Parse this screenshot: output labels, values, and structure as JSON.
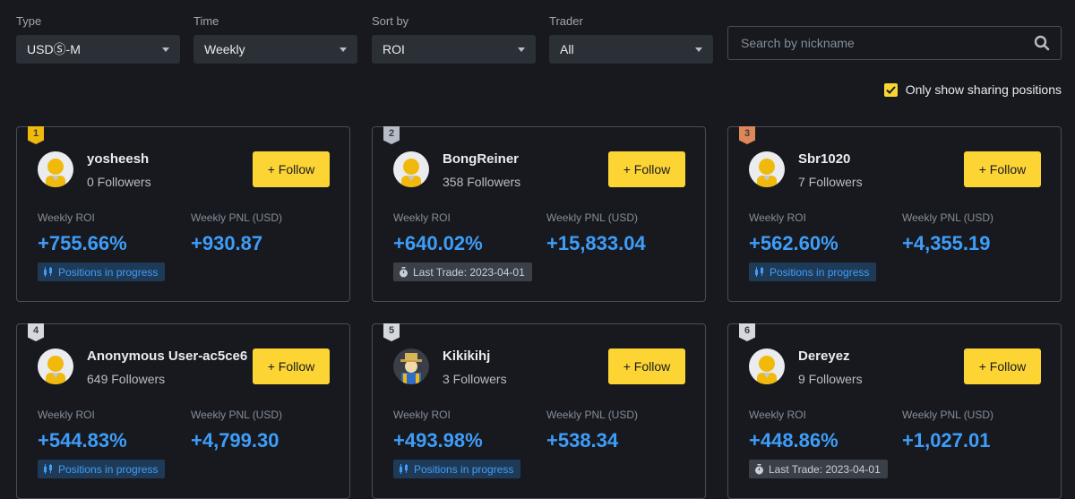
{
  "filters": {
    "type": {
      "label": "Type",
      "value": "USDⓈ-M"
    },
    "time": {
      "label": "Time",
      "value": "Weekly"
    },
    "sort": {
      "label": "Sort by",
      "value": "ROI"
    },
    "trader": {
      "label": "Trader",
      "value": "All"
    }
  },
  "search": {
    "placeholder": "Search by nickname"
  },
  "sharing_toggle": {
    "label": "Only show sharing positions",
    "checked": true
  },
  "accent_color": "#fcd535",
  "value_color": "#3e9df9",
  "traders": [
    {
      "rank": "1",
      "nickname": "yosheesh",
      "followers": "0 Followers",
      "follow_label": "+ Follow",
      "roi_label": "Weekly ROI",
      "pnl_label": "Weekly PNL (USD)",
      "roi": "+755.66%",
      "pnl": "+930.87",
      "badge": "Positions in progress",
      "badge_type": "positions",
      "avatar": "default-avatar"
    },
    {
      "rank": "2",
      "nickname": "BongReiner",
      "followers": "358 Followers",
      "follow_label": "+ Follow",
      "roi_label": "Weekly ROI",
      "pnl_label": "Weekly PNL (USD)",
      "roi": "+640.02%",
      "pnl": "+15,833.04",
      "badge": "Last Trade: 2023-04-01",
      "badge_type": "last-trade",
      "avatar": "default-avatar"
    },
    {
      "rank": "3",
      "nickname": "Sbr1020",
      "followers": "7 Followers",
      "follow_label": "+ Follow",
      "roi_label": "Weekly ROI",
      "pnl_label": "Weekly PNL (USD)",
      "roi": "+562.60%",
      "pnl": "+4,355.19",
      "badge": "Positions in progress",
      "badge_type": "positions",
      "avatar": "default-avatar"
    },
    {
      "rank": "4",
      "nickname": "Anonymous User-ac5ce6",
      "followers": "649 Followers",
      "follow_label": "+ Follow",
      "roi_label": "Weekly ROI",
      "pnl_label": "Weekly PNL (USD)",
      "roi": "+544.83%",
      "pnl": "+4,799.30",
      "badge": "Positions in progress",
      "badge_type": "positions",
      "avatar": "default-avatar"
    },
    {
      "rank": "5",
      "nickname": "Kikikihj",
      "followers": "3 Followers",
      "follow_label": "+ Follow",
      "roi_label": "Weekly ROI",
      "pnl_label": "Weekly PNL (USD)",
      "roi": "+493.98%",
      "pnl": "+538.34",
      "badge": "Positions in progress",
      "badge_type": "positions",
      "avatar": "custom-avatar"
    },
    {
      "rank": "6",
      "nickname": "Dereyez",
      "followers": "9 Followers",
      "follow_label": "+ Follow",
      "roi_label": "Weekly ROI",
      "pnl_label": "Weekly PNL (USD)",
      "roi": "+448.86%",
      "pnl": "+1,027.01",
      "badge": "Last Trade: 2023-04-01",
      "badge_type": "last-trade",
      "avatar": "default-avatar"
    }
  ],
  "rank_colors": [
    "#f0b90b",
    "#b7bdc6",
    "#e0875a",
    "#d5d8dc",
    "#d5d8dc",
    "#d5d8dc"
  ]
}
